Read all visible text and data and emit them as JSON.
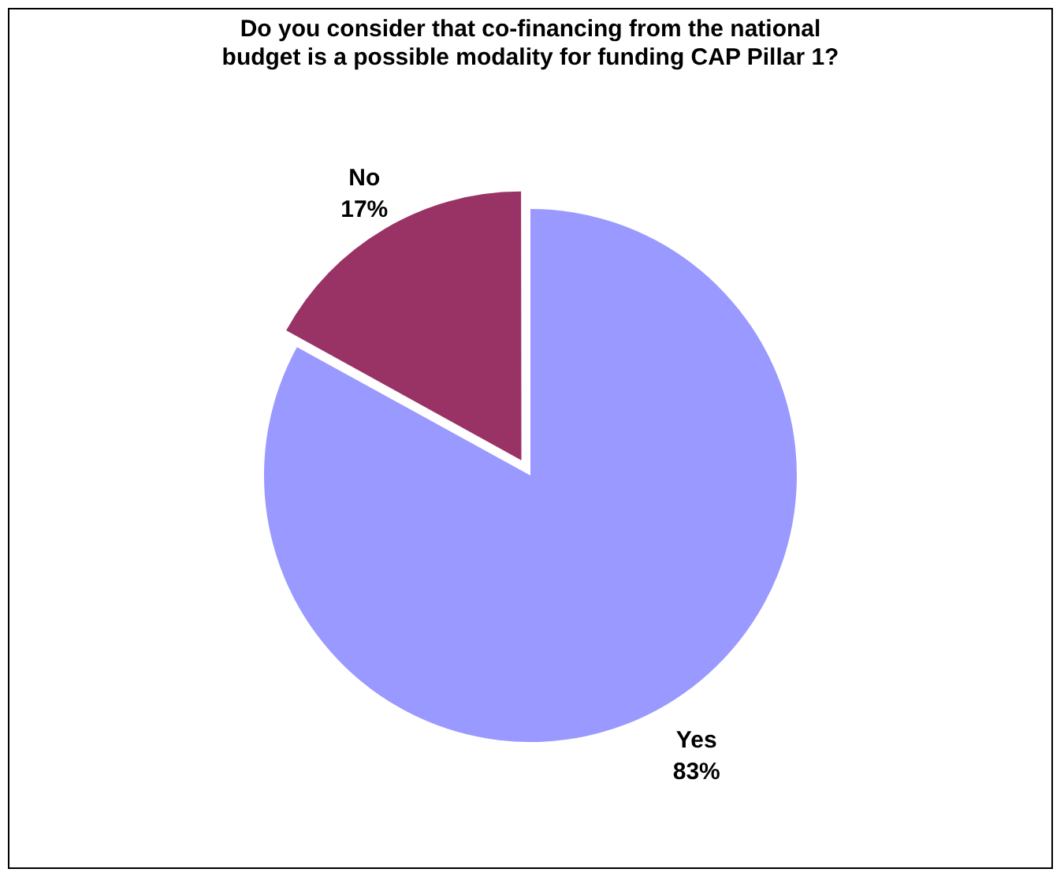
{
  "chart_data": {
    "type": "pie",
    "title": "Do you consider that co-financing from the national budget is a possible modality for funding CAP Pillar 1?",
    "categories": [
      "Yes",
      "No"
    ],
    "values": [
      83,
      17
    ],
    "value_labels": [
      "83%",
      "17%"
    ],
    "colors": [
      "#9999ff",
      "#993366"
    ],
    "legend": false
  }
}
